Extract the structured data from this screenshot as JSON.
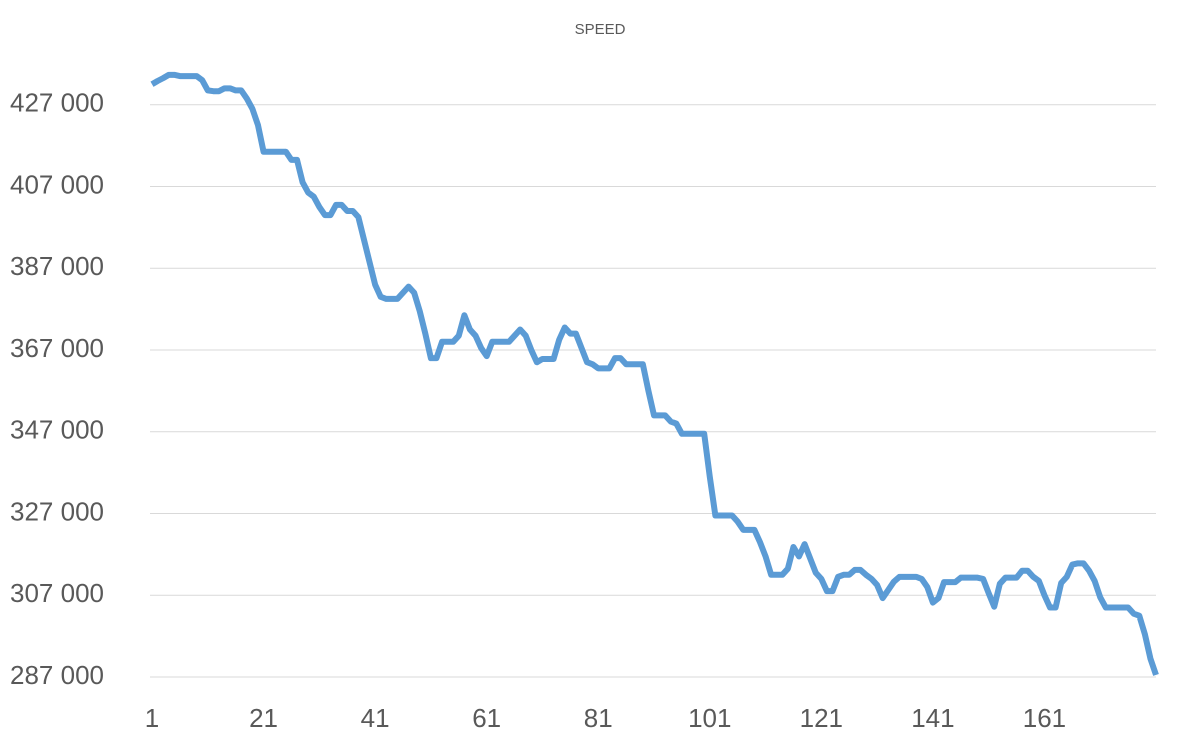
{
  "chart_data": {
    "type": "line",
    "title": "SPEED",
    "color": "#5b9bd5",
    "grid": true,
    "x": [
      1,
      2,
      3,
      4,
      5,
      6,
      7,
      8,
      9,
      10,
      11,
      12,
      13,
      14,
      15,
      16,
      17,
      18,
      19,
      20,
      21,
      22,
      23,
      24,
      25,
      26,
      27,
      28,
      29,
      30,
      31,
      32,
      33,
      34,
      35,
      36,
      37,
      38,
      39,
      40,
      41,
      42,
      43,
      44,
      45,
      46,
      47,
      48,
      49,
      50,
      51,
      52,
      53,
      54,
      55,
      56,
      57,
      58,
      59,
      60,
      61,
      62,
      63,
      64,
      65,
      66,
      67,
      68,
      69,
      70,
      71,
      72,
      73,
      74,
      75,
      76,
      77,
      78,
      79,
      80,
      81,
      82,
      83,
      84,
      85,
      86,
      87,
      88,
      89,
      90,
      91,
      92,
      93,
      94,
      95,
      96,
      97,
      98,
      99,
      100,
      101,
      102,
      103,
      104,
      105,
      106,
      107,
      108,
      109,
      110,
      111,
      112,
      113,
      114,
      115,
      116,
      117,
      118,
      119,
      120,
      121,
      122,
      123,
      124,
      125,
      126,
      127,
      128,
      129,
      130,
      131,
      132,
      133,
      134,
      135,
      136,
      137,
      138,
      139,
      140,
      141,
      142,
      143,
      144,
      145,
      146,
      147,
      148,
      149,
      150,
      151,
      152,
      153,
      154,
      155,
      156,
      157,
      158,
      159,
      160,
      161,
      162,
      163,
      164,
      165,
      166,
      167,
      168,
      169,
      170,
      171,
      172,
      173,
      174,
      175,
      176,
      177,
      178,
      179,
      180,
      181
    ],
    "values": [
      432000,
      432800,
      433500,
      434300,
      434300,
      434000,
      434000,
      434000,
      434000,
      433000,
      430500,
      430300,
      430300,
      431000,
      431000,
      430500,
      430500,
      428500,
      426000,
      422000,
      415500,
      415500,
      415500,
      415500,
      415500,
      413500,
      413500,
      408000,
      405500,
      404500,
      402000,
      400000,
      400000,
      402500,
      402500,
      401000,
      401000,
      399500,
      394000,
      388500,
      383000,
      380000,
      379500,
      379500,
      379500,
      381000,
      382500,
      381000,
      376500,
      371000,
      365000,
      365000,
      369000,
      369000,
      369000,
      370500,
      375500,
      372000,
      370500,
      367500,
      365500,
      369000,
      369000,
      369000,
      369000,
      370500,
      372000,
      370500,
      367000,
      364000,
      364800,
      364800,
      364800,
      369500,
      372500,
      371000,
      371000,
      367500,
      364000,
      363500,
      362500,
      362500,
      362500,
      365000,
      365000,
      363500,
      363500,
      363500,
      363500,
      357000,
      351000,
      351000,
      351000,
      349500,
      349000,
      346500,
      346500,
      346500,
      346500,
      346500,
      336000,
      326500,
      326500,
      326500,
      326500,
      325000,
      323000,
      323000,
      323000,
      320000,
      316500,
      312000,
      312000,
      312000,
      313500,
      318800,
      316500,
      319500,
      316000,
      312500,
      311000,
      308000,
      308000,
      311500,
      312000,
      312000,
      313200,
      313200,
      312000,
      311000,
      309500,
      306300,
      308300,
      310300,
      311500,
      311500,
      311500,
      311500,
      311000,
      309000,
      305200,
      306300,
      310200,
      310200,
      310200,
      311300,
      311300,
      311300,
      311300,
      311000,
      307500,
      304200,
      309800,
      311300,
      311300,
      311300,
      313000,
      313000,
      311500,
      310500,
      307000,
      304000,
      304000,
      310000,
      311500,
      314500,
      314800,
      314800,
      313000,
      310500,
      306500,
      304000,
      304000,
      304000,
      304000,
      304000,
      302500,
      302000,
      297500,
      291500,
      287500
    ],
    "xlim": [
      1,
      181
    ],
    "xticks": [
      1,
      21,
      41,
      61,
      81,
      101,
      121,
      141,
      161
    ],
    "ylim": [
      287000,
      435000
    ],
    "yticks": [
      {
        "value": 287000,
        "label": "287 000"
      },
      {
        "value": 307000,
        "label": "307 000"
      },
      {
        "value": 327000,
        "label": "327 000"
      },
      {
        "value": 347000,
        "label": "347 000"
      },
      {
        "value": 367000,
        "label": "367 000"
      },
      {
        "value": 387000,
        "label": "387 000"
      },
      {
        "value": 407000,
        "label": "407 000"
      },
      {
        "value": 427000,
        "label": "427 000"
      }
    ]
  }
}
